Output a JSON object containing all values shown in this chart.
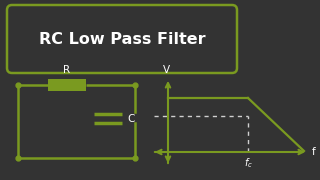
{
  "background_color": "#333333",
  "title_text": "RC Low Pass Filter",
  "title_box_edge_color": "#7a9a20",
  "green_color": "#7a9a20",
  "white_color": "#ffffff",
  "dotted_color": "#d0d0d0",
  "resistor_label": "R",
  "capacitor_label": "C",
  "v_label": "V",
  "f_label": "f",
  "fc_label": "$f_c$",
  "title_fontsize": 11.5,
  "label_fontsize": 7.5,
  "fc_fontsize": 7.0
}
